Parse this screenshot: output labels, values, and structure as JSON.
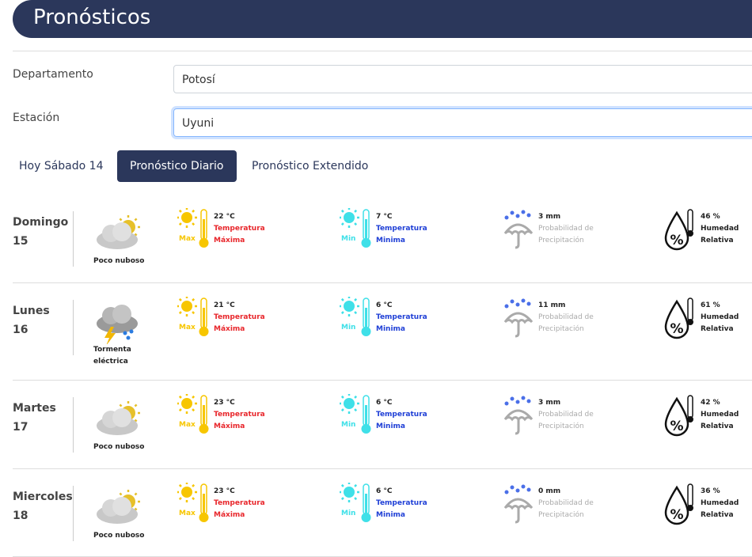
{
  "header": {
    "title": "Pronósticos"
  },
  "form": {
    "departamento_label": "Departamento",
    "departamento_value": "Potosí",
    "estacion_label": "Estación",
    "estacion_value": "Uyuni"
  },
  "tabs": [
    {
      "label": "Hoy Sábado 14",
      "active": false
    },
    {
      "label": "Pronóstico Diario",
      "active": true
    },
    {
      "label": "Pronóstico Extendido",
      "active": false
    }
  ],
  "labels": {
    "temp": "Temperatura",
    "max": "Máxima",
    "min": "Minima",
    "max_badge": "Max",
    "min_badge": "Min",
    "precip1": "Probabilidad de",
    "precip2": "Precipitación",
    "hum1": "Humedad",
    "hum2": "Relativa"
  },
  "colors": {
    "brand": "#2b375b",
    "max": "#e8262b",
    "min": "#1f3fd6",
    "sun_max": "#f7c600",
    "sun_min": "#3fe0e8",
    "precip_text": "#aaaaaa"
  },
  "days": [
    {
      "name": "Domingo",
      "num": "15",
      "cond1": "Poco nuboso",
      "cond2": "",
      "icon": "partly-cloudy",
      "max": "22 °C",
      "min": "7 °C",
      "precip": "3 mm",
      "hum": "46 %"
    },
    {
      "name": "Lunes",
      "num": "16",
      "cond1": "Tormenta",
      "cond2": "eléctrica",
      "icon": "thunderstorm",
      "max": "21 °C",
      "min": "6 °C",
      "precip": "11 mm",
      "hum": "61 %"
    },
    {
      "name": "Martes",
      "num": "17",
      "cond1": "Poco nuboso",
      "cond2": "",
      "icon": "partly-cloudy",
      "max": "23 °C",
      "min": "6 °C",
      "precip": "3 mm",
      "hum": "42 %"
    },
    {
      "name": "Miercoles",
      "num": "18",
      "cond1": "Poco nuboso",
      "cond2": "",
      "icon": "partly-cloudy",
      "max": "23 °C",
      "min": "6 °C",
      "precip": "0 mm",
      "hum": "36 %"
    }
  ]
}
